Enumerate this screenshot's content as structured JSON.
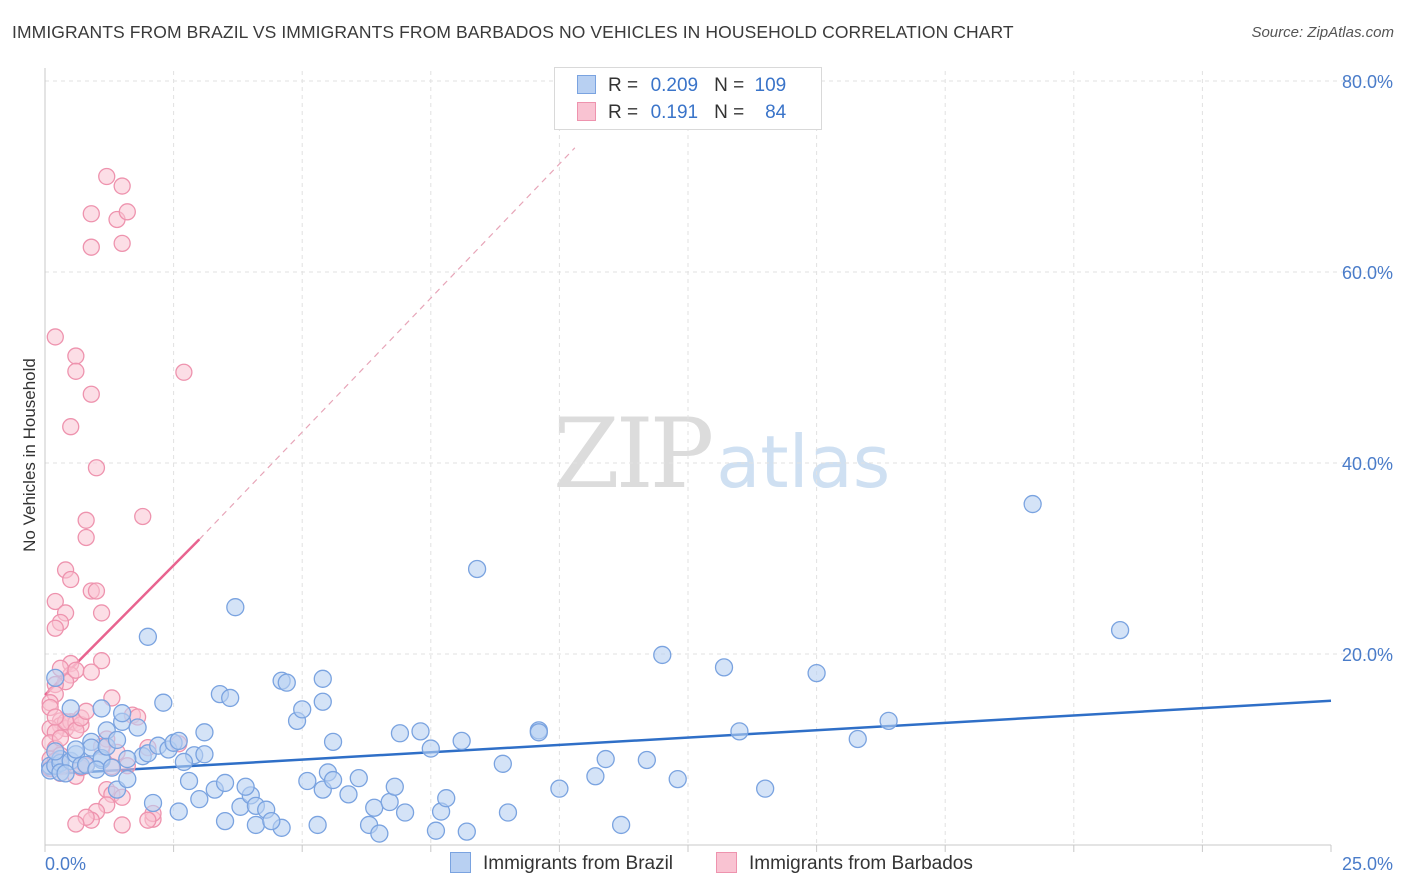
{
  "title": "IMMIGRANTS FROM BRAZIL VS IMMIGRANTS FROM BARBADOS NO VEHICLES IN HOUSEHOLD CORRELATION CHART",
  "source": "Source: ZipAtlas.com",
  "watermark": {
    "zip": "ZIP",
    "atlas": "atlas"
  },
  "legend": {
    "series1": {
      "r_label": "R =",
      "r_value": "0.209",
      "n_label": "N =",
      "n_value": "109"
    },
    "series2": {
      "r_label": "R =",
      "r_value": "0.191",
      "n_label": "N =",
      "n_value": "84"
    }
  },
  "bottom_legend": {
    "series1": "Immigrants from Brazil",
    "series2": "Immigrants from Barbados"
  },
  "colors": {
    "blue_fill": "#b8d0f2",
    "blue_stroke": "#7aa3e0",
    "blue_line": "#2f6fc7",
    "pink_fill": "#f9c3d2",
    "pink_stroke": "#ee93ae",
    "pink_line": "#e8638f",
    "axis_text": "#4a7cc9",
    "grid": "#e2e2e2"
  },
  "chart_data": {
    "type": "scatter",
    "title": "IMMIGRANTS FROM BRAZIL VS IMMIGRANTS FROM BARBADOS NO VEHICLES IN HOUSEHOLD CORRELATION CHART",
    "xlabel": "",
    "ylabel": "No Vehicles in Household",
    "xlim": [
      0,
      25
    ],
    "ylim": [
      0,
      80
    ],
    "x_tick_labels": [
      "0.0%",
      "25.0%"
    ],
    "y_ticks": [
      20,
      40,
      60,
      80
    ],
    "y_tick_labels": [
      "20.0%",
      "40.0%",
      "60.0%",
      "80.0%"
    ],
    "grid": true,
    "series": [
      {
        "name": "Immigrants from Brazil",
        "color": "blue",
        "trend": {
          "x0": 0,
          "y0": 7.4,
          "x1": 25,
          "y1": 15.1,
          "style": "solid"
        },
        "points": [
          [
            0.1,
            8.3
          ],
          [
            0.1,
            7.8
          ],
          [
            0.2,
            8.3
          ],
          [
            0.3,
            9.0
          ],
          [
            0.3,
            8.6
          ],
          [
            0.3,
            7.6
          ],
          [
            0.2,
            17.5
          ],
          [
            0.5,
            8.8
          ],
          [
            0.6,
            9.5
          ],
          [
            0.5,
            14.3
          ],
          [
            0.7,
            8.3
          ],
          [
            0.8,
            8.4
          ],
          [
            0.9,
            10.8
          ],
          [
            0.9,
            10.2
          ],
          [
            1.1,
            8.9
          ],
          [
            1.1,
            9.1
          ],
          [
            1.0,
            7.9
          ],
          [
            1.1,
            14.3
          ],
          [
            1.2,
            10.3
          ],
          [
            1.2,
            12.0
          ],
          [
            1.4,
            11.0
          ],
          [
            1.5,
            12.9
          ],
          [
            1.4,
            5.8
          ],
          [
            1.5,
            13.8
          ],
          [
            1.6,
            6.9
          ],
          [
            1.9,
            9.3
          ],
          [
            1.8,
            12.3
          ],
          [
            2.0,
            9.6
          ],
          [
            2.1,
            4.4
          ],
          [
            2.0,
            21.8
          ],
          [
            2.2,
            10.4
          ],
          [
            2.4,
            10.0
          ],
          [
            2.3,
            14.9
          ],
          [
            2.5,
            10.7
          ],
          [
            2.6,
            10.9
          ],
          [
            2.6,
            3.5
          ],
          [
            2.9,
            9.4
          ],
          [
            2.8,
            6.7
          ],
          [
            3.0,
            4.8
          ],
          [
            3.1,
            9.5
          ],
          [
            3.1,
            11.8
          ],
          [
            3.3,
            5.8
          ],
          [
            3.4,
            15.8
          ],
          [
            3.5,
            6.5
          ],
          [
            3.5,
            2.5
          ],
          [
            3.6,
            15.4
          ],
          [
            3.7,
            24.9
          ],
          [
            3.8,
            4.0
          ],
          [
            4.0,
            5.2
          ],
          [
            4.1,
            4.1
          ],
          [
            4.1,
            2.1
          ],
          [
            4.3,
            3.7
          ],
          [
            4.6,
            1.8
          ],
          [
            4.6,
            17.2
          ],
          [
            4.7,
            17.0
          ],
          [
            4.9,
            13.0
          ],
          [
            5.0,
            14.2
          ],
          [
            5.1,
            6.7
          ],
          [
            5.3,
            2.1
          ],
          [
            5.4,
            17.4
          ],
          [
            5.4,
            15.0
          ],
          [
            5.4,
            5.8
          ],
          [
            5.5,
            7.6
          ],
          [
            5.6,
            6.8
          ],
          [
            5.6,
            10.8
          ],
          [
            5.9,
            5.3
          ],
          [
            6.1,
            7.0
          ],
          [
            6.3,
            2.1
          ],
          [
            6.4,
            3.9
          ],
          [
            6.5,
            1.2
          ],
          [
            6.7,
            4.5
          ],
          [
            6.9,
            11.7
          ],
          [
            7.0,
            3.4
          ],
          [
            7.3,
            11.9
          ],
          [
            7.5,
            10.1
          ],
          [
            7.6,
            1.5
          ],
          [
            7.7,
            3.5
          ],
          [
            7.8,
            4.9
          ],
          [
            8.1,
            10.9
          ],
          [
            8.2,
            1.4
          ],
          [
            8.4,
            28.9
          ],
          [
            8.9,
            8.5
          ],
          [
            9.6,
            12.0
          ],
          [
            9.6,
            11.8
          ],
          [
            10.0,
            5.9
          ],
          [
            10.7,
            7.2
          ],
          [
            10.9,
            9.0
          ],
          [
            11.2,
            2.1
          ],
          [
            11.7,
            8.9
          ],
          [
            12.0,
            19.9
          ],
          [
            12.3,
            6.9
          ],
          [
            13.2,
            18.6
          ],
          [
            13.5,
            11.9
          ],
          [
            14.0,
            5.9
          ],
          [
            15.0,
            18.0
          ],
          [
            15.8,
            11.1
          ],
          [
            16.4,
            13.0
          ],
          [
            19.2,
            35.7
          ],
          [
            20.9,
            22.5
          ],
          [
            0.4,
            7.5
          ],
          [
            0.6,
            10.0
          ],
          [
            1.3,
            8.1
          ],
          [
            1.6,
            9.0
          ],
          [
            2.7,
            8.7
          ],
          [
            3.9,
            6.1
          ],
          [
            4.4,
            2.5
          ],
          [
            6.8,
            6.1
          ],
          [
            9.0,
            3.4
          ],
          [
            0.2,
            9.8
          ]
        ]
      },
      {
        "name": "Immigrants from Barbados",
        "color": "pink",
        "trend": {
          "x0": 0,
          "y0": 15.7,
          "x1": 3.0,
          "y1": 32.0,
          "x1_dash": 10.3,
          "y1_dash": 73.0,
          "style": "solid+dashed"
        },
        "points": [
          [
            0.2,
            53.2
          ],
          [
            0.6,
            51.2
          ],
          [
            0.5,
            43.8
          ],
          [
            0.9,
            47.2
          ],
          [
            1.0,
            39.5
          ],
          [
            0.6,
            49.6
          ],
          [
            0.8,
            34.0
          ],
          [
            0.8,
            32.2
          ],
          [
            0.4,
            28.8
          ],
          [
            0.5,
            27.8
          ],
          [
            0.2,
            25.5
          ],
          [
            0.4,
            24.3
          ],
          [
            0.3,
            23.3
          ],
          [
            0.2,
            22.7
          ],
          [
            0.5,
            19.0
          ],
          [
            0.5,
            17.8
          ],
          [
            0.4,
            17.1
          ],
          [
            0.2,
            16.8
          ],
          [
            0.3,
            18.5
          ],
          [
            0.6,
            18.3
          ],
          [
            0.2,
            15.8
          ],
          [
            0.1,
            14.9
          ],
          [
            0.1,
            14.4
          ],
          [
            0.3,
            13.0
          ],
          [
            0.3,
            12.5
          ],
          [
            0.4,
            12.2
          ],
          [
            0.1,
            12.2
          ],
          [
            0.2,
            11.8
          ],
          [
            0.1,
            10.7
          ],
          [
            0.2,
            10.1
          ],
          [
            0.3,
            9.4
          ],
          [
            0.1,
            9.0
          ],
          [
            0.2,
            8.8
          ],
          [
            0.3,
            8.2
          ],
          [
            0.1,
            8.0
          ],
          [
            0.3,
            7.5
          ],
          [
            0.6,
            7.2
          ],
          [
            0.7,
            8.1
          ],
          [
            0.8,
            8.3
          ],
          [
            0.5,
            12.9
          ],
          [
            0.6,
            12.8
          ],
          [
            0.7,
            12.6
          ],
          [
            0.9,
            26.6
          ],
          [
            1.0,
            26.6
          ],
          [
            1.1,
            24.3
          ],
          [
            1.1,
            19.3
          ],
          [
            0.9,
            18.1
          ],
          [
            1.3,
            15.4
          ],
          [
            1.2,
            11.1
          ],
          [
            1.3,
            8.2
          ],
          [
            1.6,
            8.3
          ],
          [
            1.7,
            13.6
          ],
          [
            1.8,
            13.4
          ],
          [
            2.0,
            10.2
          ],
          [
            2.6,
            10.6
          ],
          [
            1.9,
            34.4
          ],
          [
            2.7,
            49.5
          ],
          [
            1.4,
            9.7
          ],
          [
            1.2,
            5.8
          ],
          [
            1.3,
            5.3
          ],
          [
            1.5,
            5.0
          ],
          [
            1.2,
            4.2
          ],
          [
            1.0,
            3.5
          ],
          [
            0.9,
            2.6
          ],
          [
            0.8,
            2.9
          ],
          [
            0.6,
            2.2
          ],
          [
            1.5,
            2.1
          ],
          [
            2.1,
            2.7
          ],
          [
            2.1,
            3.3
          ],
          [
            2.0,
            2.6
          ],
          [
            0.9,
            66.1
          ],
          [
            1.2,
            70.0
          ],
          [
            1.5,
            69.0
          ],
          [
            1.4,
            65.5
          ],
          [
            1.6,
            66.3
          ],
          [
            0.9,
            62.6
          ],
          [
            1.5,
            63.0
          ],
          [
            0.4,
            12.9
          ],
          [
            0.6,
            12.0
          ],
          [
            0.7,
            13.3
          ],
          [
            1.1,
            10.3
          ],
          [
            0.2,
            13.4
          ],
          [
            0.8,
            14.0
          ],
          [
            0.3,
            11.2
          ]
        ]
      }
    ]
  }
}
